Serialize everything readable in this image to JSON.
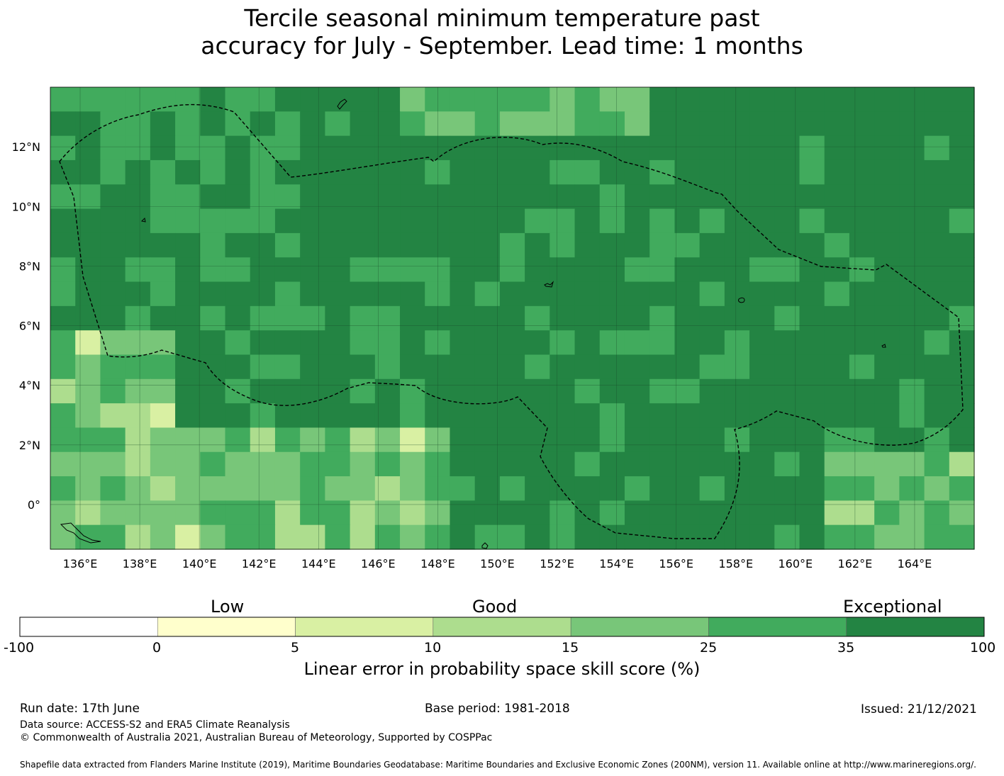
{
  "title": {
    "line1": "Tercile seasonal minimum temperature past",
    "line2": "accuracy for July - September. Lead time: 1 months"
  },
  "map": {
    "lon_ticks": [
      "136°E",
      "138°E",
      "140°E",
      "142°E",
      "144°E",
      "146°E",
      "148°E",
      "150°E",
      "152°E",
      "154°E",
      "156°E",
      "158°E",
      "160°E",
      "162°E",
      "164°E"
    ],
    "lat_ticks": [
      "12°N",
      "10°N",
      "8°N",
      "6°N",
      "4°N",
      "2°N",
      "0°"
    ],
    "extent": {
      "lon_min": 135,
      "lon_max": 166,
      "lat_min": -1.5,
      "lat_max": 14
    },
    "gridlines": true,
    "boundary_style": "dashed",
    "dominant_category": "35 to 100"
  },
  "colorbar": {
    "categories": [
      "Low",
      "Good",
      "Exceptional"
    ],
    "bounds": [
      "-100",
      "0",
      "5",
      "10",
      "15",
      "25",
      "35",
      "100"
    ],
    "colors": [
      "#ffffff",
      "#ffffcc",
      "#d9f0a3",
      "#addd8e",
      "#78c679",
      "#41ab5d",
      "#238443"
    ],
    "title": "Linear error in probability space skill score (%)"
  },
  "footer": {
    "run_date": "Run date: 17th June",
    "base_period": "Base period: 1981-2018",
    "issued": "Issued: 21/12/2021",
    "data_source": "Data source: ACCESS-S2 and ERA5 Climate Reanalysis",
    "copyright": "© Commonwealth of Australia 2021, Australian Bureau of Meteorology, Supported by COSPPac",
    "shapefile": "Shapefile data extracted from Flanders Marine Institute (2019), Maritime Boundaries Geodatabase: Maritime Boundaries and Exclusive Economic Zones (200NM), version 11. Available online at http://www.marineregions.org/."
  }
}
